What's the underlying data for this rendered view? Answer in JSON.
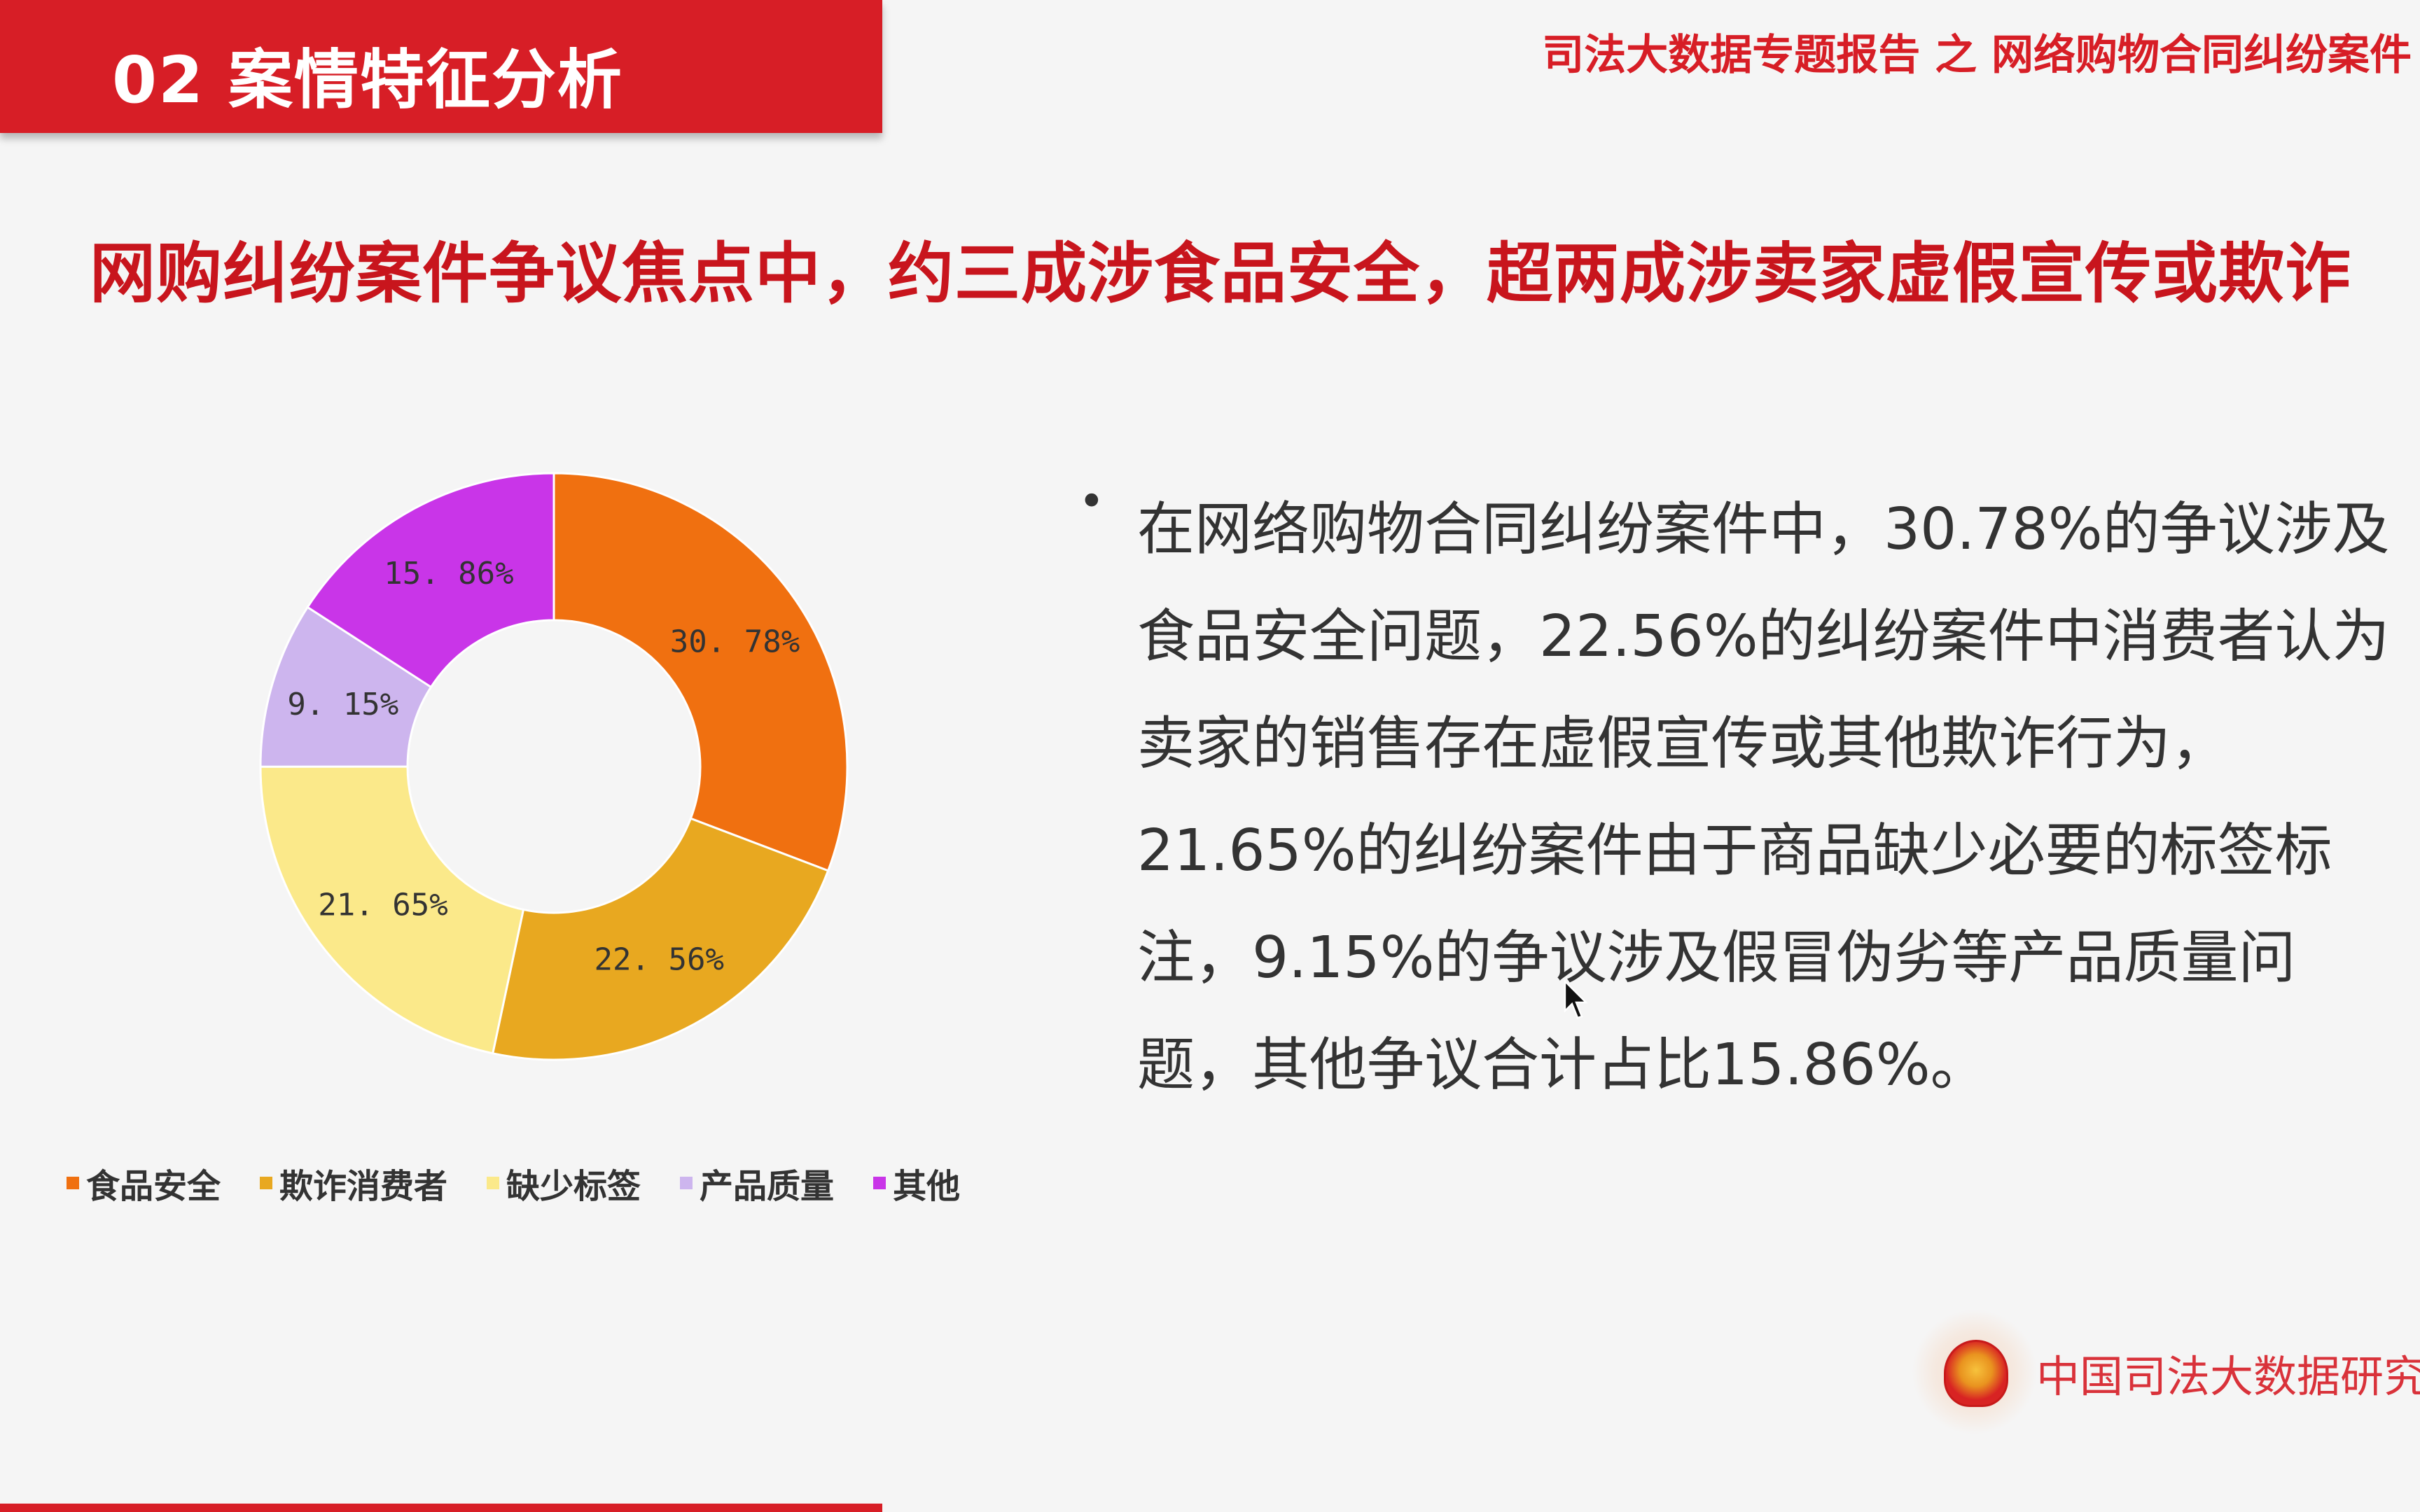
{
  "header": {
    "section": "02  案情特征分析",
    "report_title": "司法大数据专题报告 之 网络购物合同纠纷案件"
  },
  "headline": "网购纠纷案件争议焦点中，约三成涉食品安全，超两成涉卖家虚假宣传或欺诈",
  "body": {
    "bullet": "•",
    "lines": [
      "在网络购物合同纠纷案件中，30.78%的争议涉及",
      "食品安全问题，22.56%的纠纷案件中消费者认为",
      "卖家的销售存在虚假宣传或其他欺诈行为，",
      "21.65%的纠纷案件由于商品缺少必要的标签标",
      "注，9.15%的争议涉及假冒伪劣等产品质量问",
      "题，其他争议合计占比15.86%。"
    ]
  },
  "footer": {
    "institute": "中国司法大数据研究院"
  },
  "chart_data": {
    "type": "pie",
    "variant": "donut",
    "categories": [
      "食品安全",
      "欺诈消费者",
      "缺少标签",
      "产品质量",
      "其他"
    ],
    "values": [
      30.78,
      22.56,
      21.65,
      9.15,
      15.86
    ],
    "data_labels": [
      "30. 78%",
      "22. 56%",
      "21. 65%",
      "9. 15%",
      "15. 86%"
    ],
    "colors": [
      "#f07010",
      "#e8a820",
      "#fbe98a",
      "#cdb5ee",
      "#c935e8"
    ],
    "start": "top",
    "direction": "clockwise",
    "legend": "bottom"
  },
  "colors": {
    "brand_red": "#d71e26",
    "headline_red": "#c8151d"
  }
}
